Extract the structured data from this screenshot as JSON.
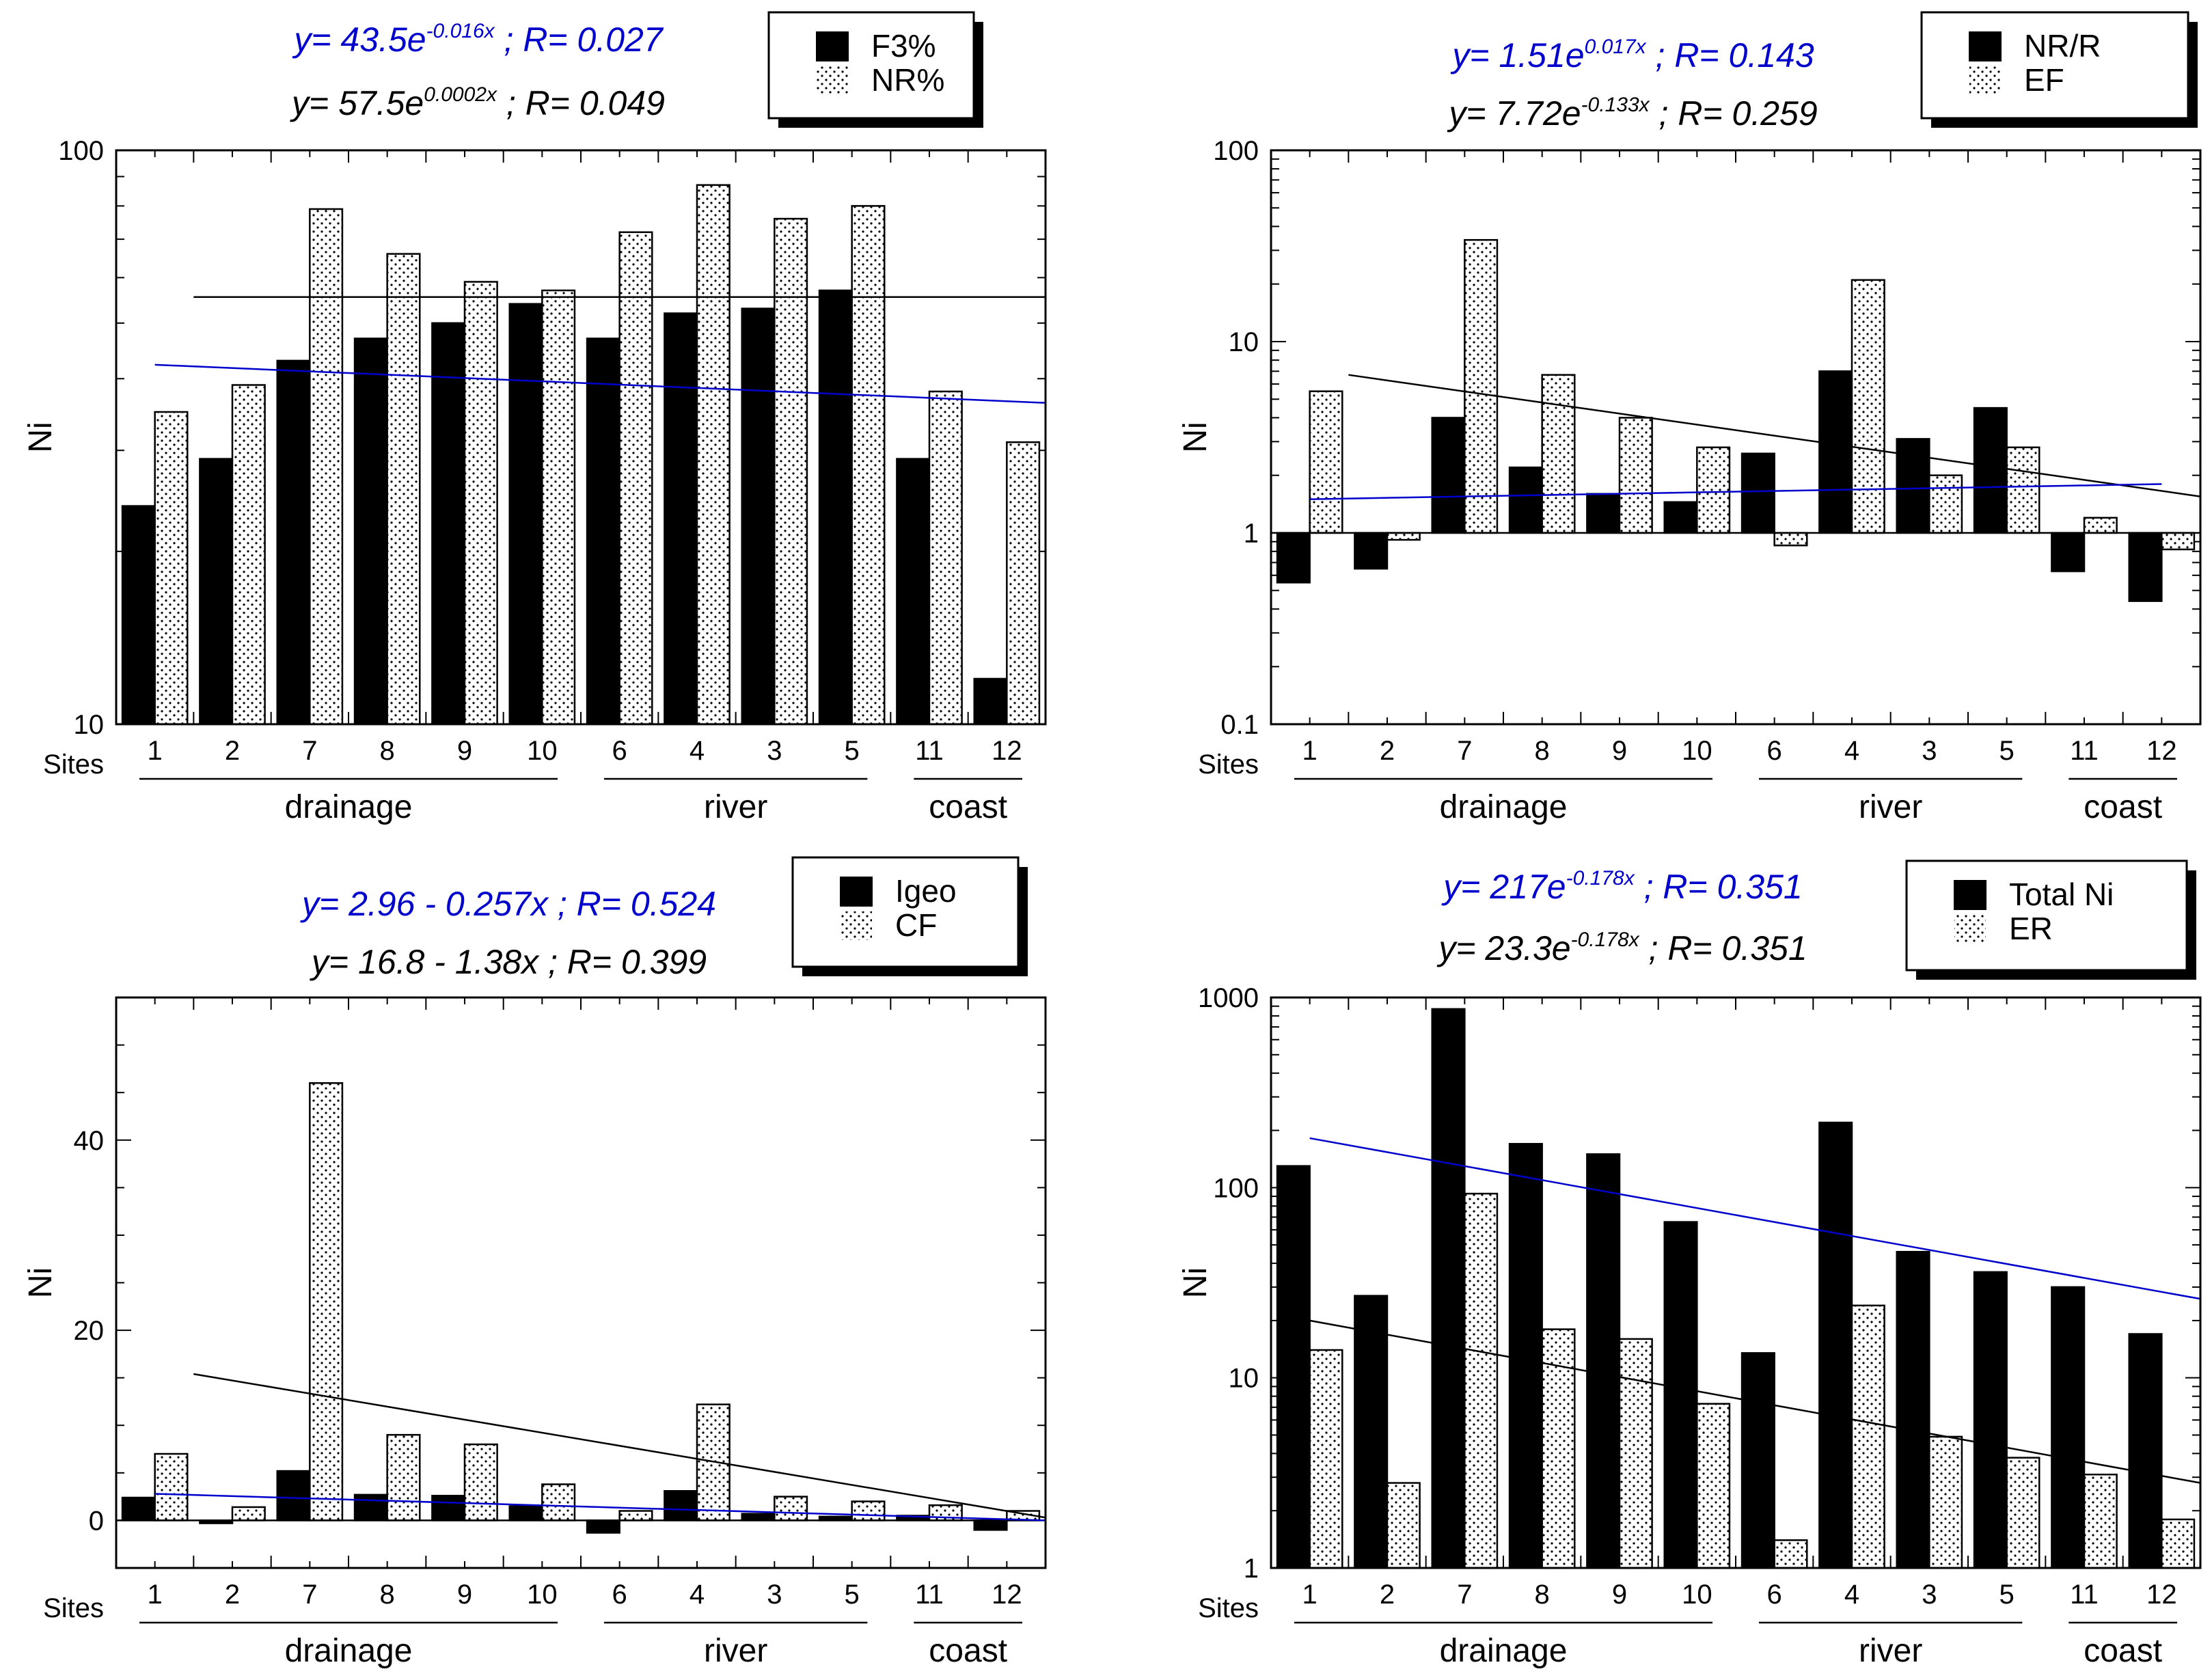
{
  "chart_data": [
    {
      "id": "tl",
      "type": "bar",
      "scale": "log",
      "ylim": [
        10,
        100
      ],
      "yticks": [
        "10",
        "100"
      ],
      "ylabel": "Ni",
      "xlabel": "Sites",
      "categories": [
        "1",
        "2",
        "7",
        "8",
        "9",
        "10",
        "6",
        "4",
        "3",
        "5",
        "11",
        "12"
      ],
      "groups": [
        {
          "label": "drainage",
          "from": 0,
          "to": 5
        },
        {
          "label": "river",
          "from": 6,
          "to": 9
        },
        {
          "label": "coast",
          "from": 10,
          "to": 11
        }
      ],
      "series": [
        {
          "name": "F3%",
          "style": "solid",
          "values": [
            24,
            29,
            43,
            47,
            50,
            54,
            47,
            52,
            53,
            57,
            29,
            12
          ]
        },
        {
          "name": "NR%",
          "style": "dotted",
          "values": [
            35,
            39,
            79,
            66,
            59,
            57,
            72,
            87,
            76,
            80,
            38,
            31
          ]
        }
      ],
      "trendlines": [
        {
          "color": "#000000",
          "from": 0.5,
          "to": 11.5,
          "y0": 55.5,
          "y1": 55.5
        },
        {
          "color": "#0000cc",
          "from": 0.0,
          "to": 11.5,
          "y0": 42.3,
          "y1": 36.3
        }
      ],
      "equations": [
        {
          "color": "#0000cc",
          "pre": "y= 43.5e",
          "sup": "-0.016x",
          "post": " ; R= 0.027"
        },
        {
          "color": "#000000",
          "pre": "y= 57.5e",
          "sup": "0.0002x",
          "post": " ; R= 0.049"
        }
      ]
    },
    {
      "id": "tr",
      "type": "bar",
      "scale": "log",
      "ylim": [
        0.1,
        100
      ],
      "baseline": 1,
      "yticks": [
        "0.1",
        "1",
        "10",
        "100"
      ],
      "ylabel": "Ni",
      "xlabel": "Sites",
      "categories": [
        "1",
        "2",
        "7",
        "8",
        "9",
        "10",
        "6",
        "4",
        "3",
        "5",
        "11",
        "12"
      ],
      "groups": [
        {
          "label": "drainage",
          "from": 0,
          "to": 5
        },
        {
          "label": "river",
          "from": 6,
          "to": 9
        },
        {
          "label": "coast",
          "from": 10,
          "to": 11
        }
      ],
      "series": [
        {
          "name": "NR/R",
          "style": "solid",
          "values": [
            0.55,
            0.65,
            4.0,
            2.2,
            1.6,
            1.45,
            2.6,
            7.0,
            3.1,
            4.5,
            0.63,
            0.44
          ]
        },
        {
          "name": "EF",
          "style": "dotted",
          "values": [
            5.5,
            0.92,
            34,
            6.7,
            4.0,
            2.8,
            0.86,
            21,
            2.0,
            2.8,
            1.2,
            0.82
          ]
        }
      ],
      "trendlines": [
        {
          "color": "#000000",
          "from": 0.5,
          "to": 11.5,
          "y0": 6.7,
          "y1": 1.55
        },
        {
          "color": "#0000cc",
          "from": 0.0,
          "to": 11.0,
          "y0": 1.5,
          "y1": 1.8
        }
      ],
      "equations": [
        {
          "color": "#0000cc",
          "pre": "y= 1.51e",
          "sup": "0.017x",
          "post": " ; R= 0.143"
        },
        {
          "color": "#000000",
          "pre": "y= 7.72e",
          "sup": "-0.133x",
          "post": " ; R= 0.259"
        }
      ]
    },
    {
      "id": "bl",
      "type": "bar",
      "scale": "linear",
      "ylim": [
        -5,
        55
      ],
      "baseline": 0,
      "yticks": [
        "0",
        "20",
        "40"
      ],
      "ylabel": "Ni",
      "xlabel": "Sites",
      "categories": [
        "1",
        "2",
        "7",
        "8",
        "9",
        "10",
        "6",
        "4",
        "3",
        "5",
        "11",
        "12"
      ],
      "groups": [
        {
          "label": "drainage",
          "from": 0,
          "to": 5
        },
        {
          "label": "river",
          "from": 6,
          "to": 9
        },
        {
          "label": "coast",
          "from": 10,
          "to": 11
        }
      ],
      "series": [
        {
          "name": "Igeo",
          "style": "solid",
          "values": [
            2.4,
            -0.3,
            5.2,
            2.7,
            2.6,
            1.5,
            -1.3,
            3.1,
            0.7,
            0.4,
            0.5,
            -1.0
          ]
        },
        {
          "name": "CF",
          "style": "dotted",
          "values": [
            7.0,
            1.4,
            46,
            9.0,
            8.0,
            3.8,
            1.0,
            12.2,
            2.5,
            2.0,
            1.6,
            1.0
          ]
        }
      ],
      "trendlines": [
        {
          "color": "#000000",
          "from": 0.5,
          "to": 11.5,
          "y0": 15.4,
          "y1": 0.3
        },
        {
          "color": "#0000cc",
          "from": 0.0,
          "to": 11.5,
          "y0": 2.8,
          "y1": 0.0
        }
      ],
      "equations": [
        {
          "color": "#0000cc",
          "pre": "y= 2.96 - 0.257x ; R= 0.524",
          "sup": "",
          "post": ""
        },
        {
          "color": "#000000",
          "pre": "y= 16.8 - 1.38x ; R= 0.399",
          "sup": "",
          "post": ""
        }
      ]
    },
    {
      "id": "br",
      "type": "bar",
      "scale": "log",
      "ylim": [
        1,
        1000
      ],
      "yticks": [
        "1",
        "10",
        "100",
        "1000"
      ],
      "ylabel": "Ni",
      "xlabel": "Sites",
      "categories": [
        "1",
        "2",
        "7",
        "8",
        "9",
        "10",
        "6",
        "4",
        "3",
        "5",
        "11",
        "12"
      ],
      "groups": [
        {
          "label": "drainage",
          "from": 0,
          "to": 5
        },
        {
          "label": "river",
          "from": 6,
          "to": 9
        },
        {
          "label": "coast",
          "from": 10,
          "to": 11
        }
      ],
      "series": [
        {
          "name": "Total Ni",
          "style": "solid",
          "values": [
            130,
            27,
            870,
            170,
            150,
            66,
            13.5,
            220,
            46,
            36,
            30,
            17
          ]
        },
        {
          "name": "ER",
          "style": "dotted",
          "values": [
            14,
            2.8,
            93,
            18,
            16,
            7.3,
            1.4,
            24,
            4.9,
            3.8,
            3.1,
            1.8
          ]
        }
      ],
      "trendlines": [
        {
          "color": "#0000cc",
          "from": 0.0,
          "to": 11.5,
          "y0": 182,
          "y1": 26
        },
        {
          "color": "#000000",
          "from": 0.0,
          "to": 11.5,
          "y0": 20,
          "y1": 2.8
        }
      ],
      "equations": [
        {
          "color": "#0000cc",
          "pre": "y= 217e",
          "sup": "-0.178x",
          "post": " ; R= 0.351"
        },
        {
          "color": "#000000",
          "pre": "y= 23.3e",
          "sup": "-0.178x",
          "post": " ; R= 0.351"
        }
      ]
    }
  ]
}
